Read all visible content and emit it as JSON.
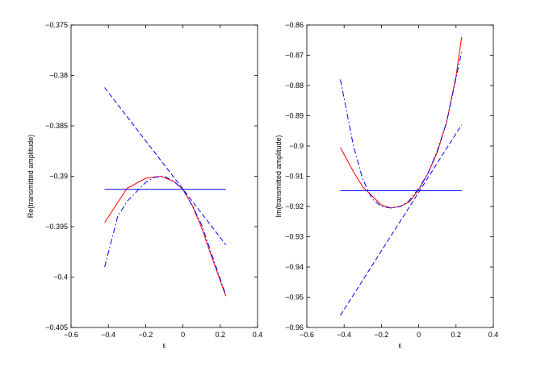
{
  "chart_data": [
    {
      "type": "line",
      "xlabel": "ε",
      "ylabel": "Re(transmitted amplitude)",
      "xlim": [
        -0.6,
        0.4
      ],
      "ylim": [
        -0.405,
        -0.375
      ],
      "xticks": [
        -0.6,
        -0.4,
        -0.2,
        0,
        0.2,
        0.4
      ],
      "xtick_labels": [
        "−0.6",
        "−0.4",
        "−0.2",
        "0",
        "0.2",
        "0.4"
      ],
      "yticks": [
        -0.405,
        -0.4,
        -0.395,
        -0.39,
        -0.385,
        -0.38,
        -0.375
      ],
      "ytick_labels": [
        "−0.405",
        "−0.4",
        "−0.395",
        "−0.39",
        "−0.385",
        "−0.38",
        "−0.375"
      ],
      "grid": false,
      "series": [
        {
          "color": "#ff0000",
          "style": "solid",
          "x": [
            -0.42,
            -0.3,
            -0.2,
            -0.12,
            -0.05,
            0,
            0.05,
            0.1,
            0.15,
            0.23
          ],
          "y": [
            -0.3946,
            -0.3912,
            -0.3902,
            -0.39,
            -0.3905,
            -0.3913,
            -0.3929,
            -0.3951,
            -0.3978,
            -0.4019
          ]
        },
        {
          "color": "#0000ff",
          "style": "dashdot",
          "x": [
            -0.42,
            -0.35,
            -0.3,
            -0.2,
            -0.15,
            -0.1,
            -0.05,
            0,
            0.05,
            0.1,
            0.15,
            0.23
          ],
          "y": [
            -0.399,
            -0.394,
            -0.3925,
            -0.3906,
            -0.3901,
            -0.39,
            -0.3905,
            -0.3913,
            -0.3929,
            -0.3948,
            -0.3975,
            -0.4018
          ]
        },
        {
          "color": "#0000ff",
          "style": "dashed",
          "x": [
            -0.42,
            0.23
          ],
          "y": [
            -0.3812,
            -0.3968
          ]
        },
        {
          "color": "#0000ff",
          "style": "solid",
          "x": [
            -0.42,
            0.23
          ],
          "y": [
            -0.3913,
            -0.3913
          ]
        }
      ]
    },
    {
      "type": "line",
      "xlabel": "ε",
      "ylabel": "Im(transmitted amplitude)",
      "xlim": [
        -0.6,
        0.4
      ],
      "ylim": [
        -0.96,
        -0.86
      ],
      "xticks": [
        -0.6,
        -0.4,
        -0.2,
        0,
        0.2,
        0.4
      ],
      "xtick_labels": [
        "−0.6",
        "−0.4",
        "−0.2",
        "0",
        "0.2",
        "0.4"
      ],
      "yticks": [
        -0.96,
        -0.95,
        -0.94,
        -0.93,
        -0.92,
        -0.91,
        -0.9,
        -0.89,
        -0.88,
        -0.87,
        -0.86
      ],
      "ytick_labels": [
        "−0.96",
        "−0.95",
        "−0.94",
        "−0.93",
        "−0.92",
        "−0.91",
        "−0.9",
        "−0.89",
        "−0.88",
        "−0.87",
        "−0.86"
      ],
      "grid": false,
      "series": [
        {
          "color": "#ff0000",
          "style": "solid",
          "x": [
            -0.42,
            -0.35,
            -0.3,
            -0.2,
            -0.15,
            -0.1,
            -0.05,
            0,
            0.05,
            0.1,
            0.15,
            0.2,
            0.23
          ],
          "y": [
            -0.9005,
            -0.9085,
            -0.9135,
            -0.9195,
            -0.9205,
            -0.92,
            -0.9185,
            -0.9145,
            -0.909,
            -0.902,
            -0.892,
            -0.877,
            -0.864
          ]
        },
        {
          "color": "#0000ff",
          "style": "dashdot",
          "x": [
            -0.42,
            -0.35,
            -0.3,
            -0.25,
            -0.2,
            -0.15,
            -0.1,
            -0.05,
            0,
            0.05,
            0.1,
            0.15,
            0.23
          ],
          "y": [
            -0.878,
            -0.9,
            -0.911,
            -0.9175,
            -0.92,
            -0.9205,
            -0.92,
            -0.918,
            -0.914,
            -0.909,
            -0.9015,
            -0.892,
            -0.869
          ]
        },
        {
          "color": "#0000ff",
          "style": "dashed",
          "x": [
            -0.42,
            0.23
          ],
          "y": [
            -0.956,
            -0.893
          ]
        },
        {
          "color": "#0000ff",
          "style": "solid",
          "x": [
            -0.42,
            0.23
          ],
          "y": [
            -0.9148,
            -0.9148
          ]
        }
      ]
    }
  ]
}
